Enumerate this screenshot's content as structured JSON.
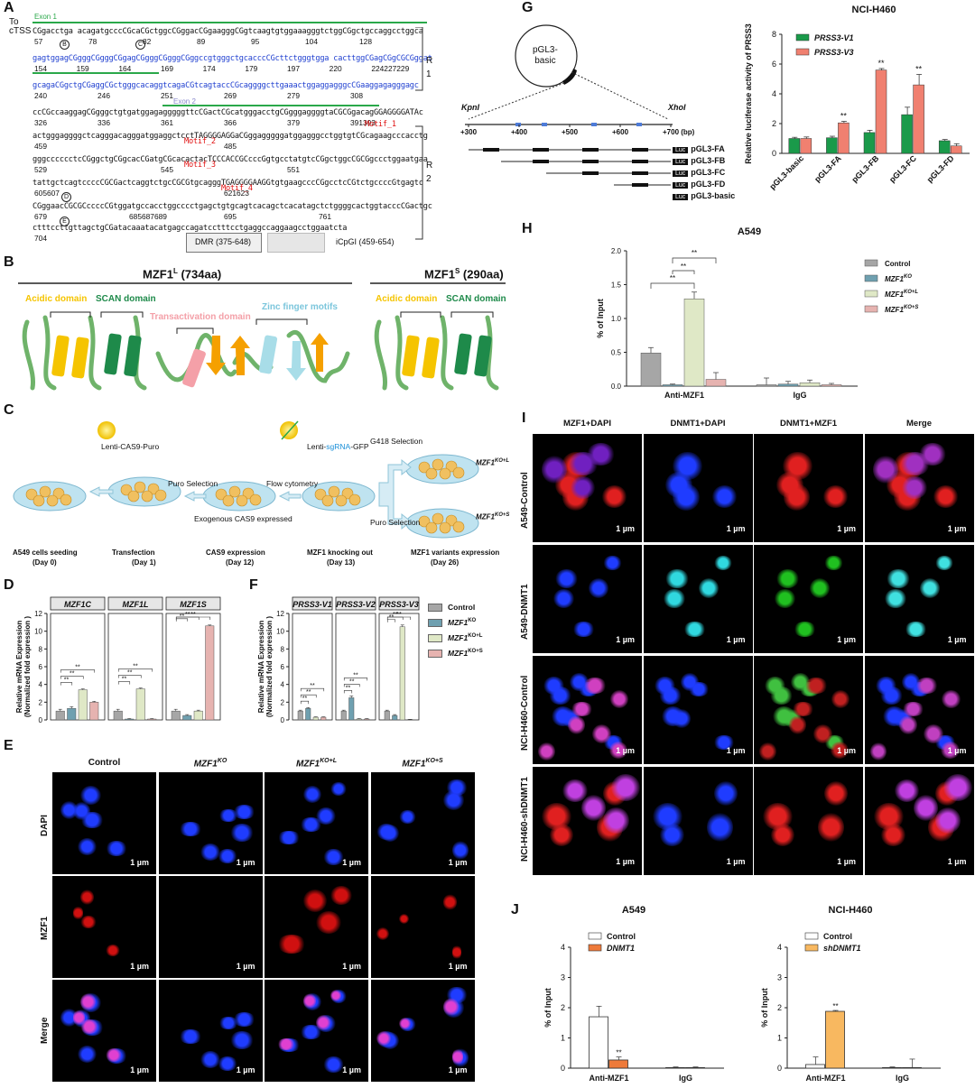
{
  "panel_labels": {
    "A": "A",
    "B": "B",
    "C": "C",
    "D": "D",
    "E": "E",
    "F": "F",
    "G": "G",
    "H": "H",
    "I": "I",
    "J": "J"
  },
  "panel_a": {
    "to_tss": "To",
    "ctss": "cTSS",
    "exon1": "Exon 1",
    "exon2": "Exon 2",
    "region_r1": "R\n1",
    "region_r2": "R\n2",
    "lines": [
      "CGgacctga   acagatgcccCGcaCGctggcCGggacCGgaagggCGgtcaagtgtggaaagggtctggCGgctgccaggcctggca",
      "gagtggagCGgggCGgggCGgagCGgggCGgggCGggccgtgggctgcacccCGcttctgggtgga     cacttggCGagCGgCGCGggat",
      "gcagaCGgctgCGaggCGctgggcacaggtcagaCGtcagtaccCGcaggggcttgaaactggaggagggcCGaaggagagggagc",
      "ccCGccaaggagCGgggctgtgatggagagggggttcCGactCGcatgggacctgCGgggaggggtaCGCGgacagGGAGGGGATAc",
      "actgggaggggctcagggacagggatggaggctcctTAGGGGAGGaCGggagggggatggagggcctggtgtCGcagaagcccacctg",
      "gggcccccctcCGggctgCGgcacCGatgCGcacactacTCCCACCGCcccGgtgcctatgtcCGgctggcCGCGgccctggaatgaa",
      "tattgctcagtccccCGCGactcaggtctgcCGCGtgcagggTGAGGGGAAGGtgtgaagcccCGgcctcCGtctgccccGtgagtc",
      "CGggaacCGCGCccccCGtggatgccacctggcccctgagctgtgcagtcacagctcacatagctctggggcactggtacccCGactgc",
      "ctttccttgttagctgCGatacaaatacatgagccagatcctttcctgaggccaggaagcctggaatcta"
    ],
    "numbers_rows": [
      [
        "57",
        "78",
        "82",
        "89",
        "95",
        "104",
        "128"
      ],
      [
        "154",
        "159",
        "164",
        "169",
        "174",
        "179",
        "197",
        "220",
        "224227229"
      ],
      [
        "240",
        "246",
        "251",
        "269",
        "279",
        "308"
      ],
      [
        "326",
        "336",
        "361",
        "366",
        "379",
        "391393"
      ],
      [
        "459",
        "485"
      ],
      [
        "529",
        "545",
        "551"
      ],
      [
        "605607",
        "621623"
      ],
      [
        "679",
        "685687689",
        "695",
        "761"
      ],
      [
        "704"
      ]
    ],
    "circled": [
      "B",
      "C",
      "D",
      "E"
    ],
    "motifs": [
      "Motif_1",
      "Motif_2",
      "Motif_3",
      "Motif_4"
    ],
    "legend_dmr": "DMR (375-648)",
    "legend_icpgi": "iCpGI (459-654)"
  },
  "panel_b": {
    "left_title": "MZF1",
    "left_sup": "L",
    "left_len": " (734aa)",
    "right_title": "MZF1",
    "right_sup": "S",
    "right_len": " (290aa)",
    "acidic": "Acidic domain",
    "scan": "SCAN domain",
    "transactivation": "Transactivation domain",
    "zinc": "Zinc finger motifs",
    "colors": {
      "acidic": "#f5c400",
      "scan": "#1e8a4a",
      "transactivation": "#f4a0a8",
      "zinc": "#a8dde8",
      "ribbon": "#6fb36a"
    }
  },
  "panel_c": {
    "lenti_cas9": "Lenti-CAS9-Puro",
    "lenti_sg": "Lenti-",
    "lenti_sg_mid": "sgRNA",
    "lenti_sg_end": "-GFP",
    "puro_sel": "Puro Selection",
    "flow": "Flow cytometry",
    "g418": "G418 Selection",
    "puro_sel2": "Puro Selection",
    "exo": "Exogenous CAS9 expressed",
    "ko_l": "MZF1",
    "ko_l_sup": "KO+L",
    "ko_s": "MZF1",
    "ko_s_sup": "KO+S",
    "steps": [
      {
        "title": "A549 cells seeding",
        "day": "(Day 0)"
      },
      {
        "title": "Transfection",
        "day": "(Day 1)"
      },
      {
        "title": "CAS9 expression",
        "day": "(Day 12)"
      },
      {
        "title": "MZF1 knocking out",
        "day": "(Day 13)"
      },
      {
        "title": "MZF1 variants expression",
        "day": "(Day 26)"
      }
    ]
  },
  "panel_d": {
    "ylabel": "Relative mRNA Expression",
    "ylabel2": "(Normalized fold expression )",
    "yticks": [
      "0",
      "2",
      "4",
      "6",
      "8",
      "10",
      "12"
    ],
    "sig": "**"
  },
  "panel_f": {
    "ylabel": "Relative mRNA Expression",
    "ylabel2": "(Normalized fold expression )",
    "yticks": [
      "0",
      "2",
      "4",
      "6",
      "8",
      "10",
      "12"
    ],
    "legend": [
      "Control",
      "MZF1",
      "MZF1",
      "MZF1"
    ],
    "legend_sup": [
      "",
      "KO",
      "KO+L",
      "KO+S"
    ],
    "sig": "**"
  },
  "panel_e": {
    "cols": [
      "Control",
      "MZF1",
      "MZF1",
      "MZF1"
    ],
    "cols_sup": [
      "",
      "KO",
      "KO+L",
      "KO+S"
    ],
    "rows": [
      "DAPI",
      "MZF1",
      "Merge"
    ],
    "scale": "1 µm"
  },
  "panel_g": {
    "plasmid": "pGL3-\nbasic",
    "kpni": "KpnI",
    "xhoi": "XhoI",
    "axis": [
      "+300",
      "+400",
      "+500",
      "+600",
      "+700 (bp)"
    ],
    "constructs": [
      "pGL3-FA",
      "pGL3-FB",
      "pGL3-FC",
      "pGL3-FD",
      "pGL3-basic"
    ],
    "luc": "Luc",
    "sig": "**"
  },
  "panel_h": {
    "sig": "**"
  },
  "panel_i": {
    "cols": [
      "MZF1+DAPI",
      "DNMT1+DAPI",
      "DNMT1+MZF1",
      "Merge"
    ],
    "rows": [
      "A549-Control",
      "A549-DNMT1",
      "NCI-H460-Control",
      "NCI-H460-shDNMT1"
    ],
    "scale": "1 µm"
  },
  "panel_j": {
    "sig": "**"
  },
  "chart_data": [
    {
      "id": "D-MZF1C",
      "type": "bar",
      "title": "MZF1C",
      "categories": [
        "Control",
        "MZF1KO",
        "MZF1KO+L",
        "MZF1KO+S"
      ],
      "values": [
        1.0,
        1.3,
        3.4,
        2.0
      ],
      "errors": [
        0.2,
        0.2,
        0.1,
        0.1
      ],
      "ylim": [
        0,
        12
      ],
      "colors": [
        "#a6a6a6",
        "#6fa0b0",
        "#dfe8c6",
        "#e6b3b0"
      ]
    },
    {
      "id": "D-MZF1L",
      "type": "bar",
      "title": "MZF1L",
      "categories": [
        "Control",
        "MZF1KO",
        "MZF1KO+L",
        "MZF1KO+S"
      ],
      "values": [
        1.0,
        0.1,
        3.5,
        0.1
      ],
      "errors": [
        0.2,
        0.05,
        0.1,
        0.05
      ],
      "ylim": [
        0,
        12
      ],
      "colors": [
        "#a6a6a6",
        "#6fa0b0",
        "#dfe8c6",
        "#e6b3b0"
      ]
    },
    {
      "id": "D-MZF1S",
      "type": "bar",
      "title": "MZF1S",
      "categories": [
        "Control",
        "MZF1KO",
        "MZF1KO+L",
        "MZF1KO+S"
      ],
      "values": [
        1.0,
        0.5,
        1.0,
        10.6
      ],
      "errors": [
        0.2,
        0.1,
        0.1,
        0.1
      ],
      "ylim": [
        0,
        12
      ],
      "colors": [
        "#a6a6a6",
        "#6fa0b0",
        "#dfe8c6",
        "#e6b3b0"
      ]
    },
    {
      "id": "F-V1",
      "type": "bar",
      "title": "PRSS3-V1",
      "categories": [
        "Control",
        "MZF1KO",
        "MZF1KO+L",
        "MZF1KO+S"
      ],
      "values": [
        1.0,
        1.3,
        0.3,
        0.3
      ],
      "errors": [
        0.1,
        0.1,
        0.05,
        0.05
      ],
      "ylim": [
        0,
        12
      ],
      "colors": [
        "#a6a6a6",
        "#6fa0b0",
        "#dfe8c6",
        "#e6b3b0"
      ]
    },
    {
      "id": "F-V2",
      "type": "bar",
      "title": "PRSS3-V2",
      "categories": [
        "Control",
        "MZF1KO",
        "MZF1KO+L",
        "MZF1KO+S"
      ],
      "values": [
        1.0,
        2.5,
        0.1,
        0.1
      ],
      "errors": [
        0.1,
        0.2,
        0.05,
        0.05
      ],
      "ylim": [
        0,
        12
      ],
      "colors": [
        "#a6a6a6",
        "#6fa0b0",
        "#dfe8c6",
        "#e6b3b0"
      ]
    },
    {
      "id": "F-V3",
      "type": "bar",
      "title": "PRSS3-V3",
      "categories": [
        "Control",
        "MZF1KO",
        "MZF1KO+L",
        "MZF1KO+S"
      ],
      "values": [
        1.0,
        0.5,
        10.5,
        0.05
      ],
      "errors": [
        0.1,
        0.1,
        0.2,
        0.02
      ],
      "ylim": [
        0,
        12
      ],
      "colors": [
        "#a6a6a6",
        "#6fa0b0",
        "#dfe8c6",
        "#e6b3b0"
      ]
    },
    {
      "id": "G",
      "type": "bar",
      "title": "NCI-H460",
      "ylabel": "Relative luciferase activity of PRSS3",
      "categories": [
        "pGL3-basic",
        "pGL3-FA",
        "pGL3-FB",
        "pGL3-FC",
        "pGL3-FD"
      ],
      "ylim": [
        0,
        8
      ],
      "yticks": [
        0,
        2,
        4,
        6,
        8
      ],
      "series": [
        {
          "name": "PRSS3-V1",
          "color": "#1a9a4a",
          "values": [
            1.0,
            1.05,
            1.4,
            2.6,
            0.85
          ],
          "errors": [
            0.08,
            0.1,
            0.15,
            0.5,
            0.08
          ]
        },
        {
          "name": "PRSS3-V3",
          "color": "#f08070",
          "values": [
            1.0,
            2.05,
            5.6,
            4.6,
            0.5
          ],
          "errors": [
            0.1,
            0.1,
            0.1,
            0.7,
            0.15
          ]
        }
      ]
    },
    {
      "id": "H",
      "type": "bar",
      "title": "A549",
      "ylabel": "% of Input",
      "categories": [
        "Anti-MZF1",
        "IgG"
      ],
      "ylim": [
        0,
        2.0
      ],
      "yticks": [
        "0.0",
        "0.5",
        "1.0",
        "1.5",
        "2.0"
      ],
      "series": [
        {
          "name": "Control",
          "color": "#a6a6a6",
          "values": [
            0.49,
            0.02
          ],
          "errors": [
            0.08,
            0.1
          ]
        },
        {
          "name": "MZF1KO",
          "color": "#6fa0b0",
          "values": [
            0.02,
            0.03
          ],
          "errors": [
            0.01,
            0.04
          ]
        },
        {
          "name": "MZF1KO+L",
          "color": "#dfe8c6",
          "values": [
            1.29,
            0.05
          ],
          "errors": [
            0.1,
            0.04
          ]
        },
        {
          "name": "MZF1KO+S",
          "color": "#e6b3b0",
          "values": [
            0.1,
            0.02
          ],
          "errors": [
            0.1,
            0.02
          ]
        }
      ]
    },
    {
      "id": "J-A549",
      "type": "bar",
      "title": "A549",
      "ylabel": "% of Input",
      "categories": [
        "Anti-MZF1",
        "IgG"
      ],
      "ylim": [
        0,
        4
      ],
      "yticks": [
        "0",
        "1",
        "2",
        "3",
        "4"
      ],
      "series": [
        {
          "name": "Control",
          "color": "#ffffff",
          "values": [
            1.7,
            0.02
          ],
          "errors": [
            0.35,
            0.02
          ]
        },
        {
          "name": "DNMT1",
          "color": "#ee7a3a",
          "values": [
            0.27,
            0.02
          ],
          "errors": [
            0.1,
            0.02
          ]
        }
      ]
    },
    {
      "id": "J-H460",
      "type": "bar",
      "title": "NCI-H460",
      "ylabel": "% of Input",
      "categories": [
        "Anti-MZF1",
        "IgG"
      ],
      "ylim": [
        0,
        4
      ],
      "yticks": [
        "0",
        "1",
        "2",
        "3",
        "4"
      ],
      "series": [
        {
          "name": "Control",
          "color": "#ffffff",
          "values": [
            0.12,
            0.02
          ],
          "errors": [
            0.25,
            0.02
          ]
        },
        {
          "name": "shDNMT1",
          "color": "#f8b860",
          "values": [
            1.88,
            0.02
          ],
          "errors": [
            0.03,
            0.28
          ]
        }
      ]
    }
  ]
}
